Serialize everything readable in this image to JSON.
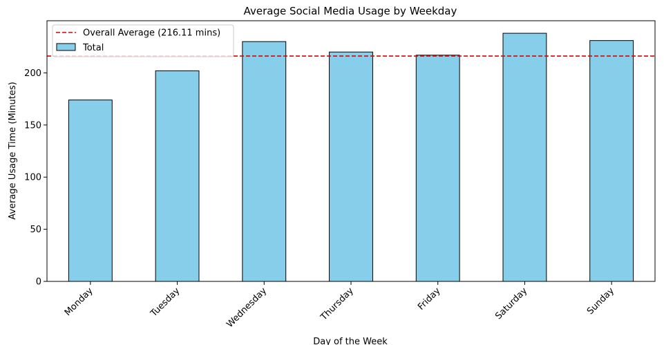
{
  "chart_data": {
    "type": "bar",
    "title": "Average Social Media Usage by Weekday",
    "xlabel": "Day of the Week",
    "ylabel": "Average Usage Time (Minutes)",
    "categories": [
      "Monday",
      "Tuesday",
      "Wednesday",
      "Thursday",
      "Friday",
      "Saturday",
      "Sunday"
    ],
    "series": [
      {
        "name": "Total",
        "values": [
          174,
          202,
          230,
          220,
          217,
          238,
          231
        ]
      }
    ],
    "yticks": [
      0,
      50,
      100,
      150,
      200
    ],
    "ylim": [
      0,
      250
    ],
    "grid": false,
    "reference_line": {
      "value": 216.11,
      "label": "Overall Average (216.11 mins)",
      "style": "dashed"
    },
    "legend_position": "top-left",
    "colors": {
      "bar": "#87CEEB",
      "bar_edge": "#000000",
      "reference_line": "#DD0000"
    }
  }
}
